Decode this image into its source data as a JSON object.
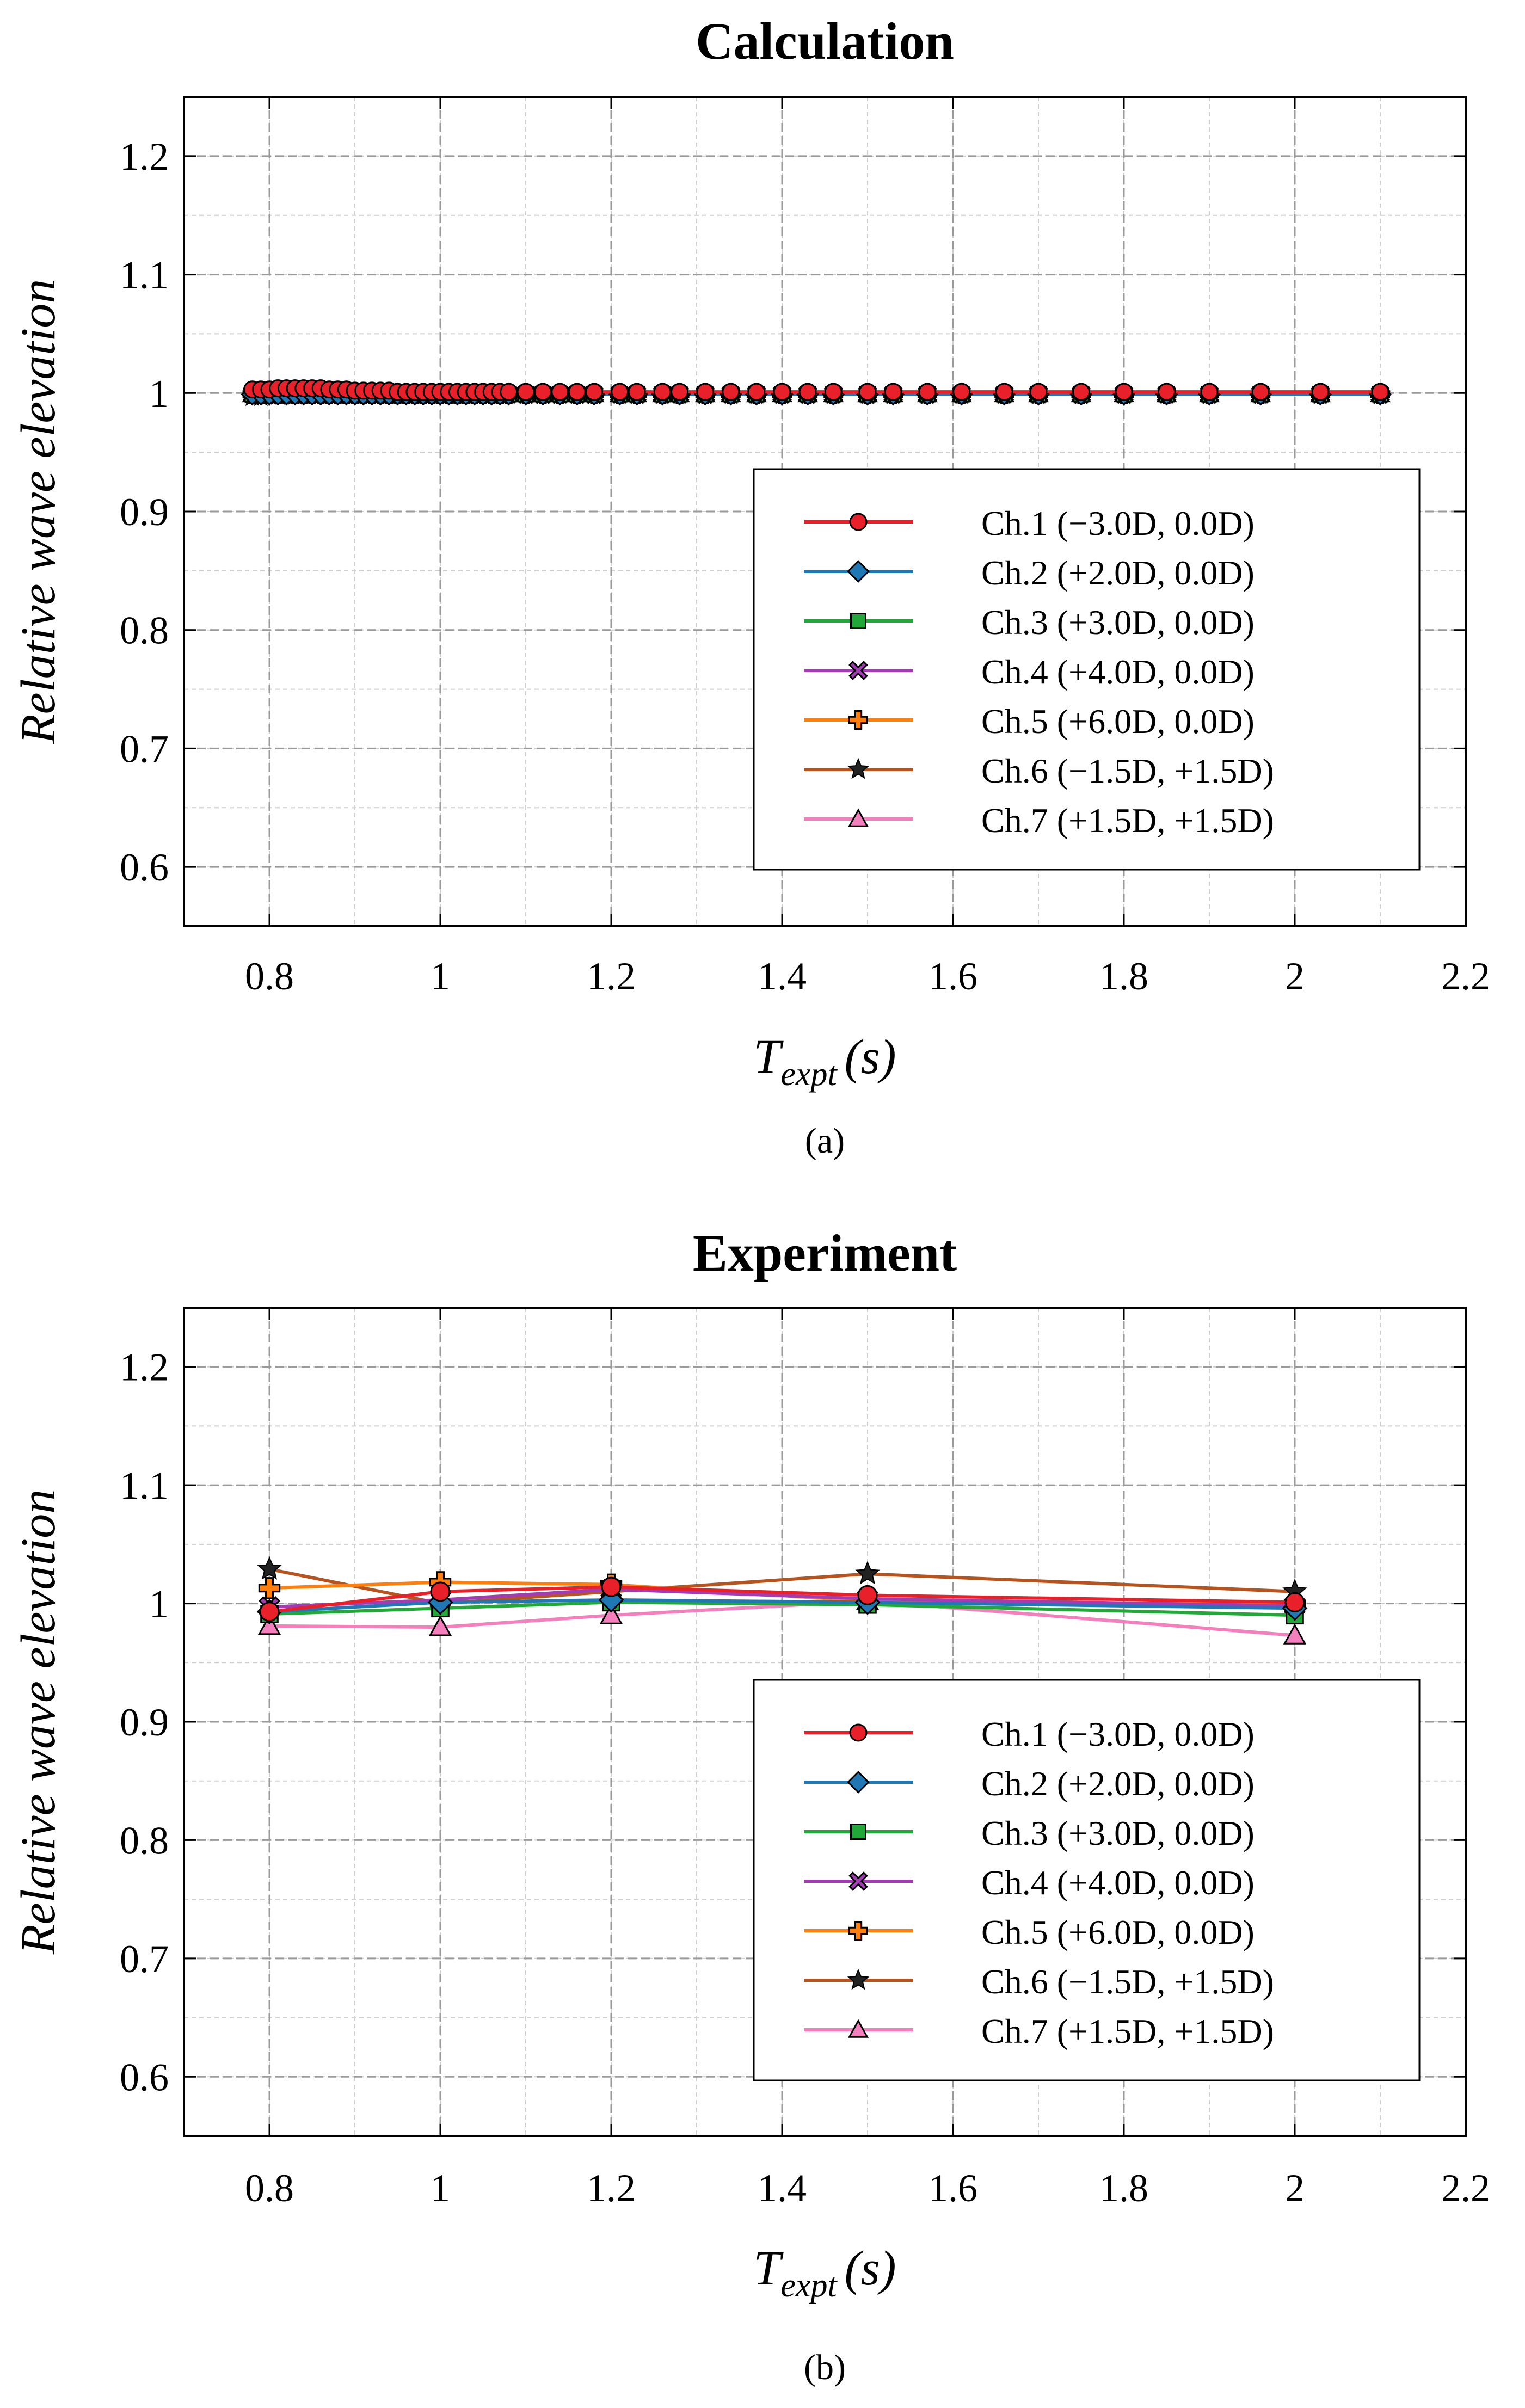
{
  "colors": {
    "ch1": "#e8202a",
    "ch2": "#1f78b4",
    "ch3": "#22a838",
    "ch4": "#a33bb3",
    "ch5": "#ff7f0e",
    "ch6": "#b5541e",
    "ch7": "#f47fbd",
    "grid": "#9a9a9a"
  },
  "chart_data": [
    {
      "type": "line",
      "panel": "a",
      "title": "Calculation",
      "caption": "(a)",
      "ylabel": "Relative wave elevation",
      "xlabel_main": "T",
      "xlabel_sub": "expt",
      "xlabel_unit": "(s)",
      "xlim": [
        0.7,
        2.2
      ],
      "ylim": [
        0.55,
        1.25
      ],
      "xticks": [
        0.8,
        1,
        1.2,
        1.4,
        1.6,
        1.8,
        2,
        2.2
      ],
      "xtick_labels": [
        "0.8",
        "1",
        "1.2",
        "1.4",
        "1.6",
        "1.8",
        "2",
        "2.2"
      ],
      "yticks": [
        0.6,
        0.7,
        0.8,
        0.9,
        1.0,
        1.1,
        1.2
      ],
      "ytick_labels": [
        "0.6",
        "0.7",
        "0.8",
        "0.9",
        "1",
        "1.1",
        "1.2"
      ],
      "grid": true,
      "legend_position": "lower-right",
      "x": [
        0.78,
        0.79,
        0.8,
        0.81,
        0.82,
        0.83,
        0.84,
        0.85,
        0.86,
        0.87,
        0.88,
        0.89,
        0.9,
        0.91,
        0.92,
        0.93,
        0.94,
        0.95,
        0.96,
        0.97,
        0.98,
        0.99,
        1.0,
        1.01,
        1.02,
        1.03,
        1.04,
        1.05,
        1.06,
        1.07,
        1.08,
        1.1,
        1.12,
        1.14,
        1.16,
        1.18,
        1.21,
        1.23,
        1.26,
        1.28,
        1.31,
        1.34,
        1.37,
        1.4,
        1.43,
        1.46,
        1.5,
        1.53,
        1.57,
        1.61,
        1.66,
        1.7,
        1.75,
        1.8,
        1.85,
        1.9,
        1.96,
        2.03,
        2.1
      ],
      "series": [
        {
          "name": "Ch.1 (−3.0D, 0.0D)",
          "key": "ch1",
          "marker": "circle",
          "values": [
            1.003,
            1.003,
            1.003,
            1.004,
            1.004,
            1.004,
            1.004,
            1.004,
            1.004,
            1.003,
            1.003,
            1.003,
            1.002,
            1.002,
            1.002,
            1.002,
            1.002,
            1.001,
            1.001,
            1.001,
            1.001,
            1.001,
            1.001,
            1.001,
            1.001,
            1.001,
            1.001,
            1.001,
            1.001,
            1.001,
            1.001,
            1.001,
            1.001,
            1.001,
            1.001,
            1.001,
            1.001,
            1.001,
            1.001,
            1.001,
            1.001,
            1.001,
            1.001,
            1.001,
            1.001,
            1.001,
            1.001,
            1.001,
            1.001,
            1.001,
            1.001,
            1.001,
            1.001,
            1.001,
            1.001,
            1.001,
            1.001,
            1.001,
            1.001
          ]
        },
        {
          "name": "Ch.2 (+2.0D, 0.0D)",
          "key": "ch2",
          "marker": "diamond",
          "values": [
            0.999,
            0.999,
            0.999,
            0.999,
            0.999,
            0.999,
            0.999,
            0.999,
            0.999,
            0.999,
            0.999,
            0.999,
            0.999,
            0.999,
            0.999,
            0.999,
            0.999,
            0.999,
            0.999,
            0.999,
            0.999,
            0.999,
            0.999,
            0.999,
            0.999,
            0.999,
            0.999,
            0.999,
            0.999,
            0.999,
            0.999,
            0.999,
            0.999,
            0.999,
            0.999,
            0.999,
            0.999,
            0.999,
            0.999,
            0.999,
            0.999,
            0.999,
            0.999,
            0.999,
            0.999,
            0.999,
            0.999,
            0.999,
            0.999,
            0.999,
            0.999,
            0.999,
            0.999,
            0.999,
            0.999,
            0.999,
            0.999,
            0.999,
            0.999
          ]
        },
        {
          "name": "Ch.3 (+3.0D, 0.0D)",
          "key": "ch3",
          "marker": "square",
          "values": [
            0.999,
            0.999,
            0.999,
            0.999,
            0.999,
            0.999,
            0.999,
            0.999,
            0.999,
            0.999,
            0.999,
            0.999,
            0.999,
            0.999,
            0.999,
            0.999,
            0.999,
            0.999,
            0.999,
            0.999,
            0.999,
            0.999,
            0.999,
            0.999,
            0.999,
            0.999,
            0.999,
            0.999,
            0.999,
            0.999,
            0.999,
            0.999,
            0.999,
            0.999,
            0.999,
            0.999,
            0.999,
            0.999,
            0.999,
            0.999,
            0.999,
            0.999,
            0.999,
            0.999,
            0.999,
            0.999,
            0.999,
            0.999,
            0.999,
            0.999,
            0.999,
            0.999,
            0.999,
            0.999,
            0.999,
            0.999,
            0.999,
            0.999,
            0.999
          ]
        },
        {
          "name": "Ch.4 (+4.0D, 0.0D)",
          "key": "ch4",
          "marker": "xcircle",
          "values": [
            0.999,
            0.999,
            0.999,
            0.999,
            0.999,
            0.999,
            0.999,
            0.999,
            0.999,
            0.999,
            0.999,
            0.999,
            0.999,
            0.999,
            0.999,
            0.999,
            0.999,
            0.999,
            0.999,
            0.999,
            0.999,
            0.999,
            0.999,
            0.999,
            0.999,
            0.999,
            0.999,
            0.999,
            0.999,
            0.999,
            0.999,
            0.999,
            0.999,
            0.999,
            0.999,
            0.999,
            0.999,
            0.999,
            0.999,
            0.999,
            0.999,
            0.999,
            0.999,
            0.999,
            0.999,
            0.999,
            0.999,
            0.999,
            0.999,
            0.999,
            0.999,
            0.999,
            0.999,
            0.999,
            0.999,
            0.999,
            0.999,
            0.999,
            0.999
          ]
        },
        {
          "name": "Ch.5 (+6.0D, 0.0D)",
          "key": "ch5",
          "marker": "plus",
          "values": [
            0.999,
            0.999,
            0.999,
            0.999,
            0.999,
            0.999,
            0.999,
            0.999,
            0.999,
            0.999,
            0.999,
            0.999,
            0.999,
            0.999,
            0.999,
            0.999,
            0.999,
            0.999,
            0.999,
            0.999,
            0.999,
            0.999,
            0.999,
            0.999,
            0.999,
            0.999,
            0.999,
            0.999,
            0.999,
            0.999,
            0.999,
            0.999,
            0.999,
            0.999,
            0.999,
            0.999,
            0.999,
            0.999,
            0.999,
            0.999,
            0.999,
            0.999,
            0.999,
            0.999,
            0.999,
            0.999,
            0.999,
            0.999,
            0.999,
            0.999,
            0.999,
            0.999,
            0.999,
            0.999,
            0.999,
            0.999,
            0.999,
            0.999,
            0.999
          ]
        },
        {
          "name": "Ch.6 (−1.5D, +1.5D)",
          "key": "ch6",
          "marker": "star",
          "values": [
            0.997,
            0.997,
            0.998,
            0.998,
            0.998,
            0.998,
            0.999,
            0.999,
            0.999,
            0.999,
            0.999,
            0.999,
            0.999,
            0.999,
            0.999,
            0.999,
            0.999,
            0.999,
            0.999,
            0.999,
            0.999,
            0.999,
            0.999,
            0.999,
            0.999,
            0.999,
            0.999,
            0.999,
            0.999,
            0.999,
            0.999,
            0.999,
            0.999,
            0.999,
            0.999,
            0.999,
            0.999,
            0.999,
            0.999,
            0.999,
            0.999,
            0.999,
            0.999,
            0.999,
            0.999,
            0.999,
            0.999,
            0.999,
            0.999,
            0.999,
            0.999,
            0.999,
            0.999,
            0.999,
            0.999,
            0.999,
            0.999,
            0.999,
            0.999
          ]
        },
        {
          "name": "Ch.7 (+1.5D, +1.5D)",
          "key": "ch7",
          "marker": "triangle",
          "values": [
            0.999,
            0.999,
            0.999,
            0.999,
            0.999,
            0.999,
            0.999,
            0.999,
            0.999,
            0.999,
            0.999,
            0.999,
            0.999,
            0.999,
            0.999,
            0.999,
            0.999,
            0.999,
            0.999,
            0.999,
            0.999,
            0.999,
            0.999,
            0.999,
            0.999,
            0.999,
            0.999,
            0.999,
            0.999,
            0.999,
            0.999,
            0.999,
            0.999,
            0.999,
            0.999,
            0.999,
            0.999,
            0.999,
            0.999,
            0.999,
            0.999,
            0.999,
            0.999,
            0.999,
            0.999,
            0.999,
            0.999,
            0.999,
            0.999,
            0.999,
            0.999,
            0.999,
            0.999,
            0.999,
            0.999,
            0.999,
            0.999,
            0.999,
            0.999
          ]
        }
      ]
    },
    {
      "type": "line",
      "panel": "b",
      "title": "Experiment",
      "caption": "(b)",
      "ylabel": "Relative wave elevation",
      "xlabel_main": "T",
      "xlabel_sub": "expt",
      "xlabel_unit": "(s)",
      "xlim": [
        0.7,
        2.2
      ],
      "ylim": [
        0.55,
        1.25
      ],
      "xticks": [
        0.8,
        1,
        1.2,
        1.4,
        1.6,
        1.8,
        2,
        2.2
      ],
      "xtick_labels": [
        "0.8",
        "1",
        "1.2",
        "1.4",
        "1.6",
        "1.8",
        "2",
        "2.2"
      ],
      "yticks": [
        0.6,
        0.7,
        0.8,
        0.9,
        1.0,
        1.1,
        1.2
      ],
      "ytick_labels": [
        "0.6",
        "0.7",
        "0.8",
        "0.9",
        "1",
        "1.1",
        "1.2"
      ],
      "grid": true,
      "legend_position": "lower-right",
      "x": [
        0.8,
        1.0,
        1.2,
        1.5,
        2.0
      ],
      "series": [
        {
          "name": "Ch.1 (−3.0D, 0.0D)",
          "key": "ch1",
          "marker": "circle",
          "values": [
            0.993,
            1.01,
            1.014,
            1.007,
            1.001
          ]
        },
        {
          "name": "Ch.2 (+2.0D, 0.0D)",
          "key": "ch2",
          "marker": "diamond",
          "values": [
            0.993,
            1.001,
            1.003,
            1.001,
            0.996
          ]
        },
        {
          "name": "Ch.3 (+3.0D, 0.0D)",
          "key": "ch3",
          "marker": "square",
          "values": [
            0.991,
            0.996,
            1.001,
            0.999,
            0.99
          ]
        },
        {
          "name": "Ch.4 (+4.0D, 0.0D)",
          "key": "ch4",
          "marker": "xcircle",
          "values": [
            0.997,
            1.003,
            1.012,
            1.004,
            0.998
          ]
        },
        {
          "name": "Ch.5 (+6.0D, 0.0D)",
          "key": "ch5",
          "marker": "plus",
          "values": [
            1.013,
            1.018,
            1.016,
            1.002,
            0.999
          ]
        },
        {
          "name": "Ch.6 (−1.5D, +1.5D)",
          "key": "ch6",
          "marker": "star",
          "values": [
            1.029,
            1.0,
            1.01,
            1.025,
            1.01
          ]
        },
        {
          "name": "Ch.7 (+1.5D, +1.5D)",
          "key": "ch7",
          "marker": "triangle",
          "values": [
            0.981,
            0.98,
            0.99,
            1.002,
            0.973
          ]
        }
      ]
    }
  ]
}
